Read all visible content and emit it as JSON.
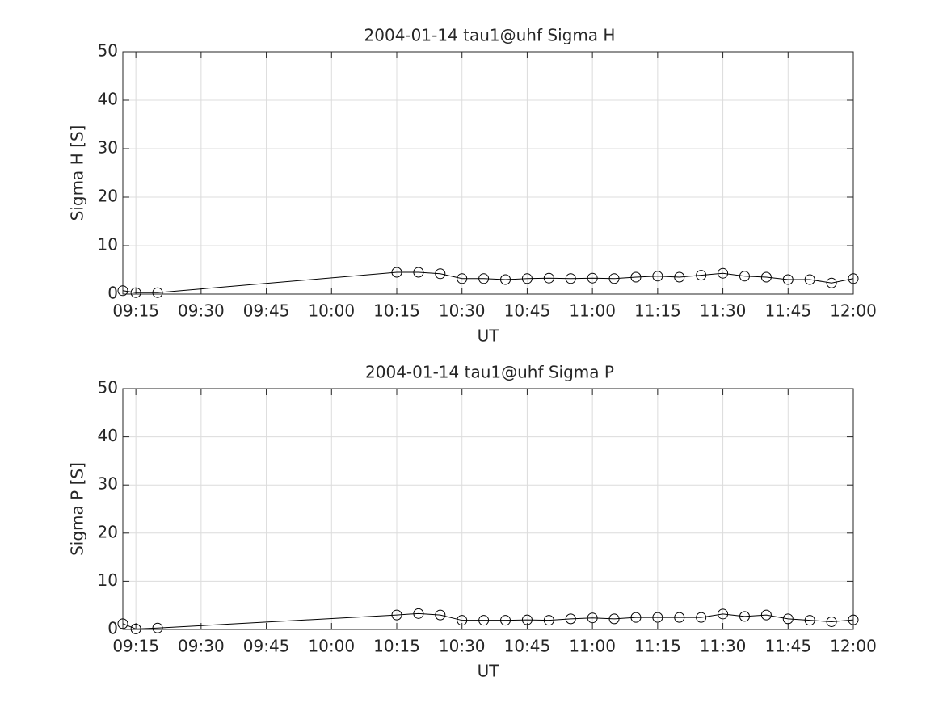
{
  "chart_data": [
    {
      "type": "line",
      "title": "2004-01-14  tau1@uhf Sigma H",
      "xlabel": "UT",
      "ylabel": "Sigma H [S]",
      "x": [
        "09:12",
        "09:15",
        "09:20",
        "10:15",
        "10:20",
        "10:25",
        "10:30",
        "10:35",
        "10:40",
        "10:45",
        "10:50",
        "10:55",
        "11:00",
        "11:05",
        "11:10",
        "11:15",
        "11:20",
        "11:25",
        "11:30",
        "11:35",
        "11:40",
        "11:45",
        "11:50",
        "11:55",
        "12:00"
      ],
      "values": [
        0.7,
        0.3,
        0.3,
        4.5,
        4.5,
        4.2,
        3.2,
        3.2,
        3.0,
        3.2,
        3.3,
        3.2,
        3.3,
        3.2,
        3.5,
        3.7,
        3.5,
        3.9,
        4.3,
        3.7,
        3.5,
        3.0,
        3.0,
        2.3,
        3.2
      ],
      "color": "#000000",
      "marker": "o",
      "xlim": [
        "09:12",
        "12:00"
      ],
      "xticks": [
        "09:15",
        "09:30",
        "09:45",
        "10:00",
        "10:15",
        "10:30",
        "10:45",
        "11:00",
        "11:15",
        "11:30",
        "11:45",
        "12:00"
      ],
      "ylim": [
        0,
        50
      ],
      "yticks": [
        0,
        10,
        20,
        30,
        40,
        50
      ],
      "grid": true
    },
    {
      "type": "line",
      "title": "2004-01-14  tau1@uhf Sigma P",
      "xlabel": "UT",
      "ylabel": "Sigma P [S]",
      "x": [
        "09:12",
        "09:15",
        "09:20",
        "10:15",
        "10:20",
        "10:25",
        "10:30",
        "10:35",
        "10:40",
        "10:45",
        "10:50",
        "10:55",
        "11:00",
        "11:05",
        "11:10",
        "11:15",
        "11:20",
        "11:25",
        "11:30",
        "11:35",
        "11:40",
        "11:45",
        "11:50",
        "11:55",
        "12:00"
      ],
      "values": [
        1.2,
        0.1,
        0.3,
        3.0,
        3.3,
        3.0,
        1.9,
        1.9,
        1.9,
        2.0,
        1.9,
        2.2,
        2.4,
        2.2,
        2.5,
        2.5,
        2.5,
        2.5,
        3.2,
        2.7,
        3.0,
        2.2,
        1.9,
        1.6,
        2.0
      ],
      "color": "#000000",
      "marker": "o",
      "xlim": [
        "09:12",
        "12:00"
      ],
      "xticks": [
        "09:15",
        "09:30",
        "09:45",
        "10:00",
        "10:15",
        "10:30",
        "10:45",
        "11:00",
        "11:15",
        "11:30",
        "11:45",
        "12:00"
      ],
      "ylim": [
        0,
        50
      ],
      "yticks": [
        0,
        10,
        20,
        30,
        40,
        50
      ],
      "grid": true
    }
  ]
}
